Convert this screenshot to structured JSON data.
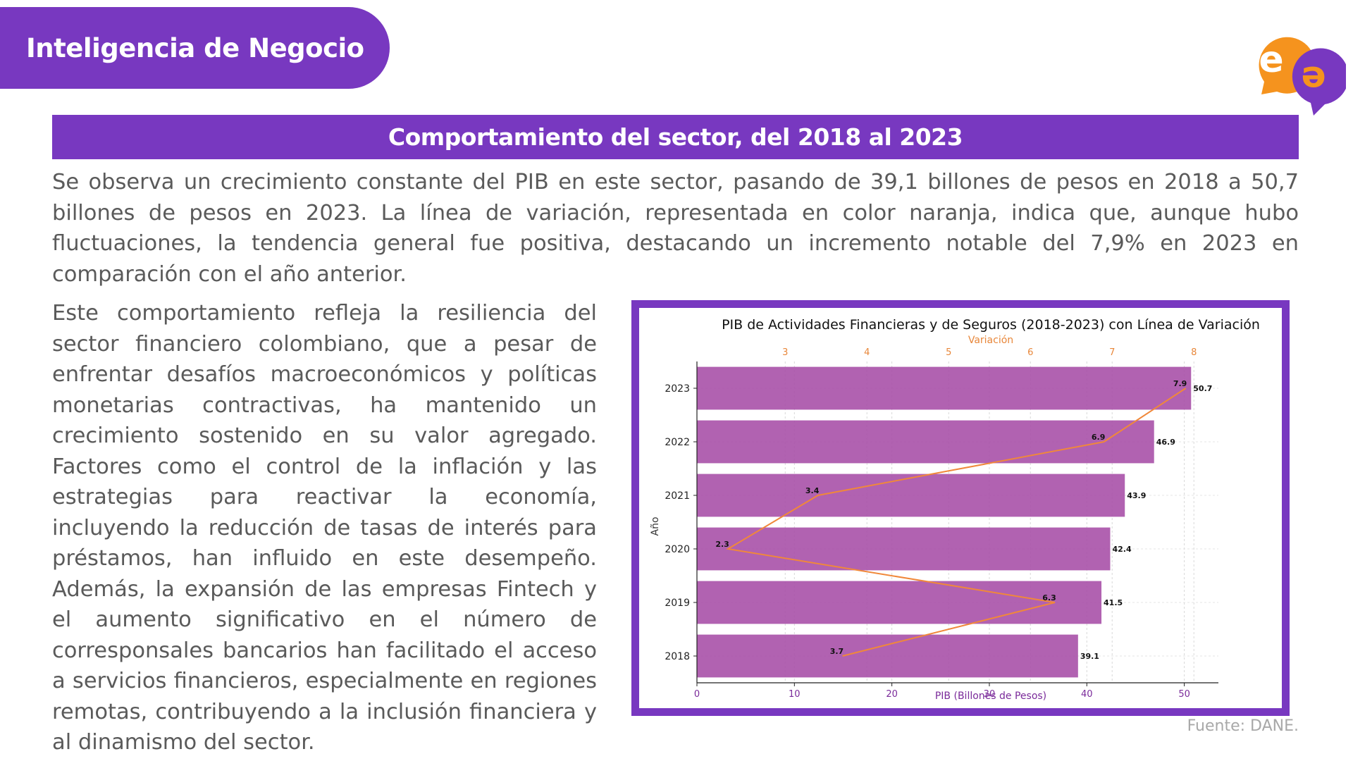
{
  "header": {
    "title": "Inteligencia de Negocio"
  },
  "logo": {
    "glyph_top": "e",
    "glyph_bottom": "e",
    "colors": {
      "orange": "#f5931e",
      "purple": "#7838c0"
    }
  },
  "section": {
    "title": "Comportamiento del sector, del 2018 al 2023"
  },
  "paragraphs": {
    "intro": "Se observa un crecimiento constante del PIB en este sector, pasando de 39,1 billones de pesos en 2018 a 50,7 billones de pesos en 2023. La línea de variación, representada en color naranja, indica que, aunque hubo fluctuaciones, la tendencia general fue positiva, destacando un incremento notable del 7,9% en 2023 en comparación con el año anterior.",
    "body": "Este comportamiento refleja la resiliencia del sector financiero colombiano, que a pesar de enfrentar desafíos macroeconómicos y políticas monetarias contractivas, ha mantenido un crecimiento sostenido en su valor agregado. Factores como el control de la inflación y las estrategias para reactivar la economía, incluyendo la reducción de tasas de interés para préstamos, han influido en este desempeño. Además, la expansión de las empresas Fintech y el aumento significativo en el número de corresponsales bancarios han facilitado el acceso a servicios financieros, especialmente en regiones remotas, contribuyendo a la inclusión financiera y al dinamismo del sector."
  },
  "source": "Fuente: DANE.",
  "chart_data": {
    "type": "bar",
    "orientation": "horizontal",
    "title": "PIB de Actividades Financieras y de Seguros (2018-2023) con Línea de Variación",
    "categories": [
      "2018",
      "2019",
      "2020",
      "2021",
      "2022",
      "2023"
    ],
    "ylabel": "Año",
    "xlabel": "PIB (Billones de Pesos)",
    "xlim": [
      0,
      53.5
    ],
    "xticks": [
      0,
      10,
      20,
      30,
      40,
      50
    ],
    "series": [
      {
        "values": [
          39.1,
          41.5,
          42.4,
          43.9,
          46.9,
          50.7
        ],
        "color": "#a64ca6"
      },
      {
        "values": [
          3.7,
          6.3,
          2.3,
          3.4,
          6.9,
          7.9
        ],
        "color": "#f0883a",
        "axis": "top"
      }
    ],
    "top_axis": {
      "label": "Variación",
      "range": [
        1.92,
        8.3
      ],
      "ticks": [
        3,
        4,
        5,
        6,
        7,
        8
      ]
    },
    "grid": true
  }
}
